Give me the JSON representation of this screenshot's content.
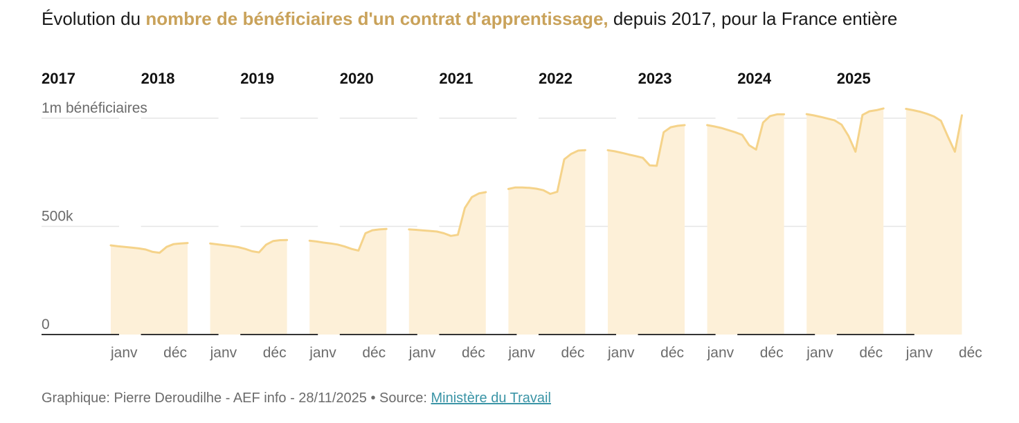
{
  "title": {
    "prefix": "Évolution du ",
    "highlight": "nombre de bénéficiaires d'un contrat d'apprentissage,",
    "suffix": " depuis 2017, pour la France entière"
  },
  "footer": {
    "credit": "Graphique: Pierre Deroudilhe - AEF info - 28/11/2025",
    "separator": " • ",
    "source_label": "Source: ",
    "source_link": "Ministère du Travail"
  },
  "chart_data": {
    "type": "area",
    "title": "Évolution du nombre de bénéficiaires d'un contrat d'apprentissage, depuis 2017, pour la France entière",
    "ylabel": "bénéficiaires",
    "ylim": [
      0,
      1000000
    ],
    "yticks": [
      {
        "value": 0,
        "label": "0"
      },
      {
        "value": 500000,
        "label": "500k"
      },
      {
        "value": 1000000,
        "label": "1m bénéficiaires"
      }
    ],
    "x_tick_labels": [
      "janv",
      "déc"
    ],
    "colors": {
      "line": "#f5d38a",
      "fill": "#fdf0d8",
      "grid": "#e6e6e6",
      "baseline": "#333333"
    },
    "panels": [
      {
        "year": "2017",
        "values": [
          412000,
          408000,
          405000,
          402000,
          398000,
          393000,
          382000,
          378000,
          405000,
          418000,
          421000,
          423000
        ]
      },
      {
        "year": "2018",
        "values": [
          421000,
          417000,
          413000,
          409000,
          404000,
          396000,
          385000,
          380000,
          415000,
          432000,
          436000,
          437000
        ]
      },
      {
        "year": "2019",
        "values": [
          434000,
          430000,
          425000,
          421000,
          416000,
          407000,
          396000,
          388000,
          468000,
          482000,
          486000,
          488000
        ]
      },
      {
        "year": "2020",
        "values": [
          486000,
          484000,
          481000,
          479000,
          476000,
          468000,
          456000,
          461000,
          585000,
          635000,
          652000,
          658000
        ]
      },
      {
        "year": "2021",
        "values": [
          673000,
          680000,
          680000,
          678000,
          674000,
          667000,
          650000,
          660000,
          810000,
          835000,
          850000,
          852000
        ]
      },
      {
        "year": "2022",
        "values": [
          852000,
          847000,
          840000,
          832000,
          825000,
          817000,
          782000,
          780000,
          935000,
          958000,
          965000,
          968000
        ]
      },
      {
        "year": "2023",
        "values": [
          968000,
          962000,
          955000,
          945000,
          935000,
          923000,
          875000,
          855000,
          980000,
          1010000,
          1018000,
          1018000
        ]
      },
      {
        "year": "2024",
        "values": [
          1019000,
          1013000,
          1006000,
          998000,
          990000,
          970000,
          918000,
          845000,
          1015000,
          1032000,
          1037000,
          1045000
        ]
      },
      {
        "year": "2025",
        "values": [
          1043000,
          1037000,
          1030000,
          1020000,
          1008000,
          988000,
          915000,
          845000,
          1013000
        ]
      }
    ]
  }
}
